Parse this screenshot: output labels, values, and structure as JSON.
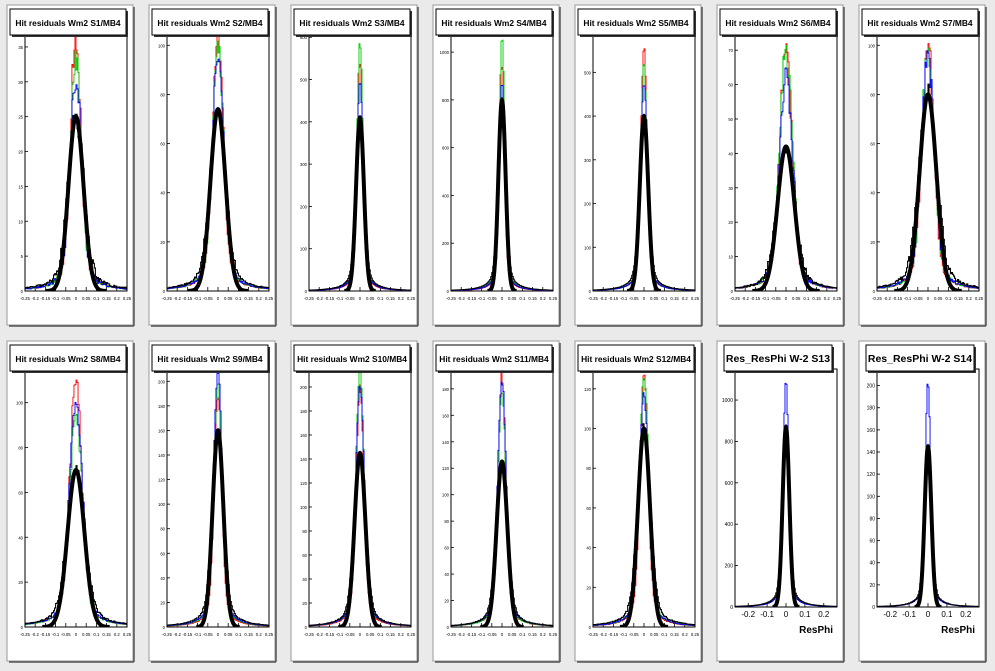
{
  "chart_data": [
    {
      "type": "line",
      "title": "Hit residuals Wm2 S1/MB4",
      "xlim": [
        -0.25,
        0.25
      ],
      "ylim": [
        0,
        37
      ],
      "x_ticks": [
        -0.25,
        -0.2,
        -0.15,
        -0.1,
        -0.05,
        0,
        0.05,
        0.1,
        0.15,
        0.2,
        0.25
      ],
      "x_tick_labels": [
        "-0.25",
        "-0.2",
        "-0.15",
        "-0.1",
        "-0.05",
        "0",
        "0.05",
        "0.1",
        "0.15",
        "0.2",
        "0.25"
      ],
      "y_ticks": [
        0,
        5,
        10,
        15,
        20,
        25,
        30,
        35
      ],
      "peak_by_color": [
        37,
        33,
        30,
        25
      ],
      "core_width": 0.025,
      "noise_level": 0.22,
      "xlabel": ""
    },
    {
      "type": "line",
      "title": "Hit residuals Wm2 S2/MB4",
      "xlim": [
        -0.25,
        0.25
      ],
      "ylim": [
        0,
        105
      ],
      "x_ticks": [
        -0.25,
        -0.2,
        -0.15,
        -0.1,
        -0.05,
        0,
        0.05,
        0.1,
        0.15,
        0.2,
        0.25
      ],
      "x_tick_labels": [
        "-0.25",
        "-0.2",
        "-0.15",
        "-0.1",
        "-0.05",
        "0",
        "0.05",
        "0.1",
        "0.15",
        "0.2",
        "0.25"
      ],
      "y_ticks": [
        0,
        20,
        40,
        60,
        80,
        100
      ],
      "peak_by_color": [
        105,
        100,
        96,
        74
      ],
      "core_width": 0.025,
      "noise_level": 0.12,
      "xlabel": ""
    },
    {
      "type": "line",
      "title": "Hit residuals Wm2 S3/MB4",
      "xlim": [
        -0.25,
        0.25
      ],
      "ylim": [
        0,
        610
      ],
      "x_ticks": [
        -0.25,
        -0.2,
        -0.15,
        -0.1,
        -0.05,
        0,
        0.05,
        0.1,
        0.15,
        0.2,
        0.25
      ],
      "x_tick_labels": [
        "-0.25",
        "-0.2",
        "-0.15",
        "-0.1",
        "-0.05",
        "0",
        "0.05",
        "0.1",
        "0.15",
        "0.2",
        "0.25"
      ],
      "y_ticks": [
        0,
        100,
        200,
        300,
        400,
        500,
        600
      ],
      "peak_by_color": [
        540,
        590,
        500,
        410
      ],
      "core_width": 0.013,
      "noise_level": 0.04,
      "xlabel": ""
    },
    {
      "type": "line",
      "title": "Hit residuals Wm2 S4/MB4",
      "xlim": [
        -0.25,
        0.25
      ],
      "ylim": [
        0,
        1080
      ],
      "x_ticks": [
        -0.25,
        -0.2,
        -0.15,
        -0.1,
        -0.05,
        0,
        0.05,
        0.1,
        0.15,
        0.2,
        0.25
      ],
      "x_tick_labels": [
        "-0.25",
        "-0.2",
        "-0.15",
        "-0.1",
        "-0.05",
        "0",
        "0.05",
        "0.1",
        "0.15",
        "0.2",
        "0.25"
      ],
      "y_ticks": [
        0,
        200,
        400,
        600,
        800,
        1000
      ],
      "peak_by_color": [
        950,
        1060,
        880,
        800
      ],
      "core_width": 0.012,
      "noise_level": 0.03,
      "xlabel": ""
    },
    {
      "type": "line",
      "title": "Hit residuals Wm2 S5/MB4",
      "xlim": [
        -0.25,
        0.25
      ],
      "ylim": [
        0,
        590
      ],
      "x_ticks": [
        -0.25,
        -0.2,
        -0.15,
        -0.1,
        -0.05,
        0,
        0.05,
        0.1,
        0.15,
        0.2,
        0.25
      ],
      "x_tick_labels": [
        "-0.25",
        "-0.2",
        "-0.15",
        "-0.1",
        "-0.05",
        "0",
        "0.05",
        "0.1",
        "0.15",
        "0.2",
        "0.25"
      ],
      "y_ticks": [
        0,
        100,
        200,
        300,
        400,
        500
      ],
      "peak_by_color": [
        560,
        520,
        480,
        400
      ],
      "core_width": 0.014,
      "noise_level": 0.04,
      "xlabel": ""
    },
    {
      "type": "line",
      "title": "Hit residuals Wm2 S6/MB4",
      "xlim": [
        -0.25,
        0.25
      ],
      "ylim": [
        0,
        75
      ],
      "x_ticks": [
        -0.25,
        -0.2,
        -0.15,
        -0.1,
        -0.05,
        0,
        0.05,
        0.1,
        0.15,
        0.2,
        0.25
      ],
      "x_tick_labels": [
        "-0.25",
        "-0.2",
        "-0.15",
        "-0.1",
        "-0.05",
        "0",
        "0.05",
        "0.1",
        "0.15",
        "0.2",
        "0.25"
      ],
      "y_ticks": [
        0,
        10,
        20,
        30,
        40,
        50,
        60,
        70
      ],
      "peak_by_color": [
        72,
        70,
        62,
        42
      ],
      "core_width": 0.028,
      "noise_level": 0.18,
      "xlabel": ""
    },
    {
      "type": "line",
      "title": "Hit residuals Wm2 S7/MB4",
      "xlim": [
        -0.25,
        0.25
      ],
      "ylim": [
        0,
        105
      ],
      "x_ticks": [
        -0.25,
        -0.2,
        -0.15,
        -0.1,
        -0.05,
        0,
        0.05,
        0.1,
        0.15,
        0.2,
        0.25
      ],
      "x_tick_labels": [
        "-0.25",
        "-0.2",
        "-0.15",
        "-0.1",
        "-0.05",
        "0",
        "0.05",
        "0.1",
        "0.15",
        "0.2",
        "0.25"
      ],
      "y_ticks": [
        0,
        20,
        40,
        60,
        80,
        100
      ],
      "peak_by_color": [
        102,
        98,
        94,
        80
      ],
      "core_width": 0.028,
      "noise_level": 0.18,
      "xlabel": ""
    },
    {
      "type": "line",
      "title": "Hit residuals Wm2 S8/MB4",
      "xlim": [
        -0.25,
        0.25
      ],
      "ylim": [
        0,
        115
      ],
      "x_ticks": [
        -0.25,
        -0.2,
        -0.15,
        -0.1,
        -0.05,
        0,
        0.05,
        0.1,
        0.15,
        0.2,
        0.25
      ],
      "x_tick_labels": [
        "-0.25",
        "-0.2",
        "-0.15",
        "-0.1",
        "-0.05",
        "0",
        "0.05",
        "0.1",
        "0.15",
        "0.2",
        "0.25"
      ],
      "y_ticks": [
        0,
        20,
        40,
        60,
        80,
        100
      ],
      "peak_by_color": [
        112,
        95,
        98,
        70
      ],
      "core_width": 0.028,
      "noise_level": 0.12,
      "xlabel": ""
    },
    {
      "type": "line",
      "title": "Hit residuals Wm2 S9/MB4",
      "xlim": [
        -0.25,
        0.25
      ],
      "ylim": [
        0,
        210
      ],
      "x_ticks": [
        -0.25,
        -0.2,
        -0.15,
        -0.1,
        -0.05,
        0,
        0.05,
        0.1,
        0.15,
        0.2,
        0.25
      ],
      "x_tick_labels": [
        "-0.25",
        "-0.2",
        "-0.15",
        "-0.1",
        "-0.05",
        "0",
        "0.05",
        "0.1",
        "0.15",
        "0.2",
        "0.25"
      ],
      "y_ticks": [
        0,
        20,
        40,
        60,
        80,
        100,
        120,
        140,
        160,
        180,
        200
      ],
      "peak_by_color": [
        190,
        200,
        207,
        160
      ],
      "core_width": 0.018,
      "noise_level": 0.06,
      "xlabel": ""
    },
    {
      "type": "line",
      "title": "Hit residuals Wm2 S10/MB4",
      "xlim": [
        -0.25,
        0.25
      ],
      "ylim": [
        0,
        215
      ],
      "x_ticks": [
        -0.25,
        -0.2,
        -0.15,
        -0.1,
        -0.05,
        0,
        0.05,
        0.1,
        0.15,
        0.2,
        0.25
      ],
      "x_tick_labels": [
        "-0.25",
        "-0.2",
        "-0.15",
        "-0.1",
        "-0.05",
        "0",
        "0.05",
        "0.1",
        "0.15",
        "0.2",
        "0.25"
      ],
      "y_ticks": [
        0,
        20,
        40,
        60,
        80,
        100,
        120,
        140,
        160,
        180,
        200
      ],
      "peak_by_color": [
        200,
        215,
        200,
        145
      ],
      "core_width": 0.018,
      "noise_level": 0.06,
      "xlabel": ""
    },
    {
      "type": "line",
      "title": "Hit residuals Wm2 S11/MB4",
      "xlim": [
        -0.25,
        0.25
      ],
      "ylim": [
        0,
        195
      ],
      "x_ticks": [
        -0.25,
        -0.2,
        -0.15,
        -0.1,
        -0.05,
        0,
        0.05,
        0.1,
        0.15,
        0.2,
        0.25
      ],
      "x_tick_labels": [
        "-0.25",
        "-0.2",
        "-0.15",
        "-0.1",
        "-0.05",
        "0",
        "0.05",
        "0.1",
        "0.15",
        "0.2",
        "0.25"
      ],
      "y_ticks": [
        0,
        20,
        40,
        60,
        80,
        100,
        120,
        140,
        160,
        180
      ],
      "peak_by_color": [
        190,
        180,
        185,
        125
      ],
      "core_width": 0.018,
      "noise_level": 0.07,
      "xlabel": ""
    },
    {
      "type": "line",
      "title": "Hit residuals Wm2 S12/MB4",
      "xlim": [
        -0.25,
        0.25
      ],
      "ylim": [
        0,
        130
      ],
      "x_ticks": [
        -0.25,
        -0.2,
        -0.15,
        -0.1,
        -0.05,
        0,
        0.05,
        0.1,
        0.15,
        0.2,
        0.25
      ],
      "x_tick_labels": [
        "-0.25",
        "-0.2",
        "-0.15",
        "-0.1",
        "-0.05",
        "0",
        "0.05",
        "0.1",
        "0.15",
        "0.2",
        "0.25"
      ],
      "y_ticks": [
        0,
        20,
        40,
        60,
        80,
        100,
        120
      ],
      "peak_by_color": [
        125,
        128,
        118,
        100
      ],
      "core_width": 0.02,
      "noise_level": 0.09,
      "xlabel": ""
    },
    {
      "type": "line",
      "title": "Res_ResPhi W-2 S13",
      "xlim": [
        -0.27,
        0.27
      ],
      "ylim": [
        0,
        1150
      ],
      "x_ticks": [
        -0.2,
        -0.1,
        0,
        0.1,
        0.2
      ],
      "x_tick_labels": [
        "-0.2",
        "-0.1",
        "0",
        "0.1",
        "0.2"
      ],
      "y_ticks": [
        0,
        200,
        400,
        600,
        800,
        1000
      ],
      "peak_by_color": [
        0,
        0,
        1100,
        870
      ],
      "core_width": 0.012,
      "noise_level": 0.02,
      "xlabel": "ResPhi"
    },
    {
      "type": "line",
      "title": "Res_ResPhi W-2 S14",
      "xlim": [
        -0.27,
        0.27
      ],
      "ylim": [
        0,
        215
      ],
      "x_ticks": [
        -0.2,
        -0.1,
        0,
        0.1,
        0.2
      ],
      "x_tick_labels": [
        "-0.2",
        "-0.1",
        "0",
        "0.1",
        "0.2"
      ],
      "y_ticks": [
        0,
        20,
        40,
        60,
        80,
        100,
        120,
        140,
        160,
        180,
        200
      ],
      "peak_by_color": [
        0,
        0,
        205,
        145
      ],
      "core_width": 0.012,
      "noise_level": 0.05,
      "xlabel": "ResPhi"
    }
  ],
  "colors": {
    "background": "#eaeaea",
    "pad": "#ffffff",
    "series": [
      "#ff0000",
      "#00cc00",
      "#0000ff",
      "#000000"
    ]
  }
}
